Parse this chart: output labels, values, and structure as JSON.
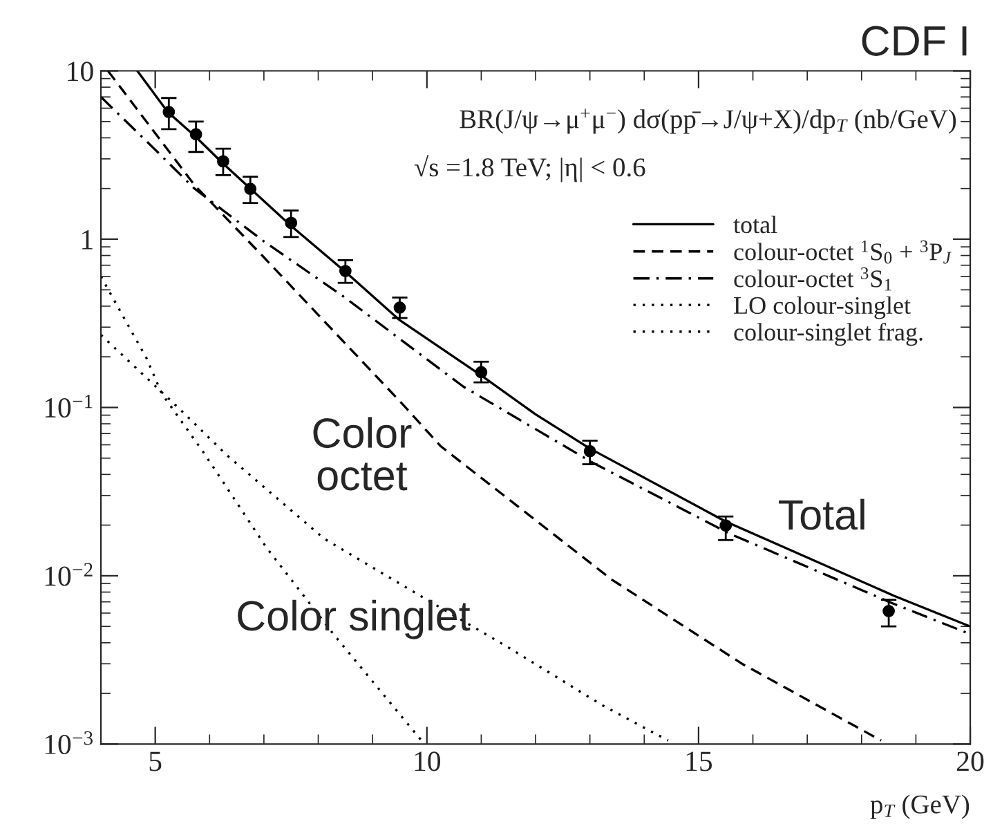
{
  "chart_data": {
    "type": "line",
    "title": "CDF I",
    "xlabel": "p$_{T}$ (GeV)",
    "log": "y",
    "legend": "top right",
    "xlim": [
      4,
      20
    ],
    "xticks": [
      5,
      10,
      15,
      20
    ],
    "ylim": [
      0.001,
      10
    ],
    "yticks": [
      {
        "value": 0.001,
        "label": "10$^{−3}$"
      },
      {
        "value": 0.01,
        "label": "10$^{−2}$"
      },
      {
        "value": 0.1,
        "label": "10$^{−1}$"
      },
      1,
      10
    ],
    "annotations": [
      "BR(J/ψ→μ$^{+}$μ$^{−}$) dσ(pp̄→J/ψ+X)/dp$_{T}$ (nb/GeV)",
      "√s =1.8 TeV; |η| < 0.6",
      "Color\noctet",
      "Total",
      "Color singlet"
    ],
    "series": [
      {
        "name": "total",
        "color": "#000000",
        "line_style": "solid",
        "x": [
          4.67,
          5.23,
          5.73,
          6.23,
          6.75,
          7.5,
          8.5,
          9.5,
          11,
          12,
          13,
          15.5,
          18.6,
          20
        ],
        "values": [
          10,
          5.7,
          4.1,
          2.85,
          2.0,
          1.2,
          0.64,
          0.33,
          0.155,
          0.091,
          0.057,
          0.021,
          0.0076,
          0.005
        ]
      },
      {
        "name": "colour-octet $^{1}$S$_{0}$ + $^{3}$P$_{J}$",
        "color": "#000000",
        "line_style": "dashed",
        "x": [
          4.13,
          5.72,
          7,
          9.56,
          10.25,
          13.4,
          15.8,
          18.36
        ],
        "values": [
          10,
          2.1,
          0.78,
          0.104,
          0.059,
          0.0095,
          0.003,
          0.00105
        ]
      },
      {
        "name": "colour-octet $^{3}$S$_{1}$",
        "color": "#000000",
        "line_style": "dashdot",
        "x": [
          4,
          5,
          5.72,
          7,
          8.45,
          10.67,
          13.05,
          15.57,
          18.6,
          20
        ],
        "values": [
          7.0,
          3.4,
          2.0,
          0.97,
          0.46,
          0.133,
          0.047,
          0.0178,
          0.0068,
          0.0045
        ]
      },
      {
        "name": "LO colour-singlet",
        "color": "#000000",
        "line_style": "dotted",
        "x": [
          4,
          4.84,
          5.12,
          5.89,
          7.04,
          8.28,
          9.9
        ],
        "values": [
          0.6,
          0.196,
          0.121,
          0.054,
          0.0148,
          0.0045,
          0.00105
        ]
      },
      {
        "name": "colour-singlet frag.",
        "color": "#000000",
        "line_style": "dotted",
        "x": [
          4,
          5.42,
          6.32,
          8.11,
          9.82,
          11.53,
          13.23,
          14.44
        ],
        "values": [
          0.27,
          0.1,
          0.052,
          0.0166,
          0.0078,
          0.0037,
          0.0017,
          0.00105
        ]
      },
      {
        "type": "scatter",
        "color": "#000000",
        "marker": "circle",
        "x": [
          5.25,
          5.75,
          6.25,
          6.75,
          7.5,
          8.5,
          9.5,
          11,
          13,
          15.5,
          18.5
        ],
        "values": [
          5.7,
          4.2,
          2.9,
          1.99,
          1.25,
          0.647,
          0.392,
          0.162,
          0.055,
          0.0199,
          0.00617
        ],
        "errors": [
          [
            4.5,
            6.9
          ],
          [
            3.3,
            5.0
          ],
          [
            2.4,
            3.45
          ],
          [
            1.64,
            2.35
          ],
          [
            1.03,
            1.48
          ],
          [
            0.55,
            0.75
          ],
          [
            0.34,
            0.45
          ],
          [
            0.141,
            0.187
          ],
          [
            0.046,
            0.0635
          ],
          [
            0.0163,
            0.0225
          ],
          [
            0.005,
            0.0072
          ]
        ]
      }
    ]
  }
}
